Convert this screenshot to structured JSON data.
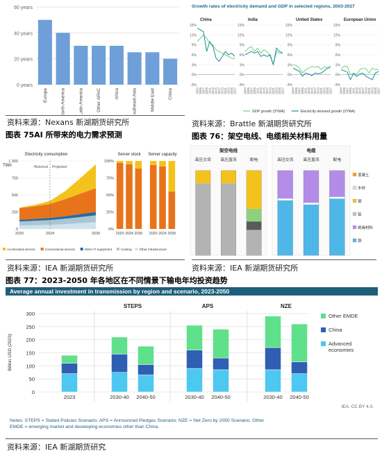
{
  "sources": {
    "tl": "资料来源：Nexans 新湖期货研究所",
    "tr": "资料来源：Brattle 新湖期货研究所",
    "ml": "资料来源：IEA 新湖期货研究所",
    "mr": "资料来源：IEA 新湖期货研究所",
    "bottom": "资料来源：IEA 新湖期货研究"
  },
  "captions": {
    "fig75": "图表 75AI 所带来的电力需求预测",
    "fig76": "图表 76：架空电线、电缆相关材料用量",
    "fig77": "图表 77：2023-2050 年各地区在不同情景下输电年均投资趋势"
  },
  "chart_data": [
    {
      "id": "cable-life",
      "type": "bar",
      "categories": [
        "Europe",
        "North America",
        "Latin America",
        "Other APAC",
        "Africa",
        "Southeast Asia",
        "Middle East",
        "China"
      ],
      "values": [
        50,
        40,
        30,
        30,
        30,
        25,
        25,
        20
      ],
      "ylim": [
        0,
        60
      ],
      "yticks": [
        "0 years",
        "20 years",
        "40 years",
        "60 years"
      ],
      "color": "#6e9fd8"
    },
    {
      "id": "growth-rates",
      "type": "line",
      "title": "Growth rates of electricity demand and GDP in selected regions, 2003-2027",
      "panels": [
        "China",
        "India",
        "United States",
        "European Union"
      ],
      "yticks": [
        "15%",
        "12%",
        "9%",
        "6%",
        "3%",
        "0%",
        "-3%"
      ],
      "ylim": [
        -3,
        15
      ],
      "x": [
        2003,
        2005,
        2007,
        2009,
        2011,
        2013,
        2015,
        2017,
        2019,
        2021,
        2023,
        2025,
        2027
      ],
      "xticks": [
        "2003",
        "2005",
        "2007",
        "2009",
        "2011",
        "2013",
        "2015",
        "2017",
        "2019",
        "2021",
        "2023",
        "2025",
        "2027"
      ],
      "series": [
        {
          "name": "GDP growth (3YMA)",
          "color": "#6fd07a",
          "values": [
            [
              10,
              11,
              12,
              11,
              9.5,
              9,
              7.5,
              7,
              6.5,
              6,
              5.5,
              5,
              4.8
            ],
            [
              7,
              8,
              8.5,
              7,
              8,
              6.5,
              7.5,
              7,
              5.5,
              3,
              7,
              6.5,
              6.5
            ],
            [
              3,
              2.8,
              2,
              0.5,
              1.5,
              2,
              2.5,
              2.3,
              2.5,
              1.5,
              2.5,
              2,
              2
            ],
            [
              2,
              2.5,
              2.5,
              0,
              0.5,
              0.2,
              1.5,
              2,
              1.8,
              0.5,
              2,
              1.5,
              1.5
            ]
          ]
        },
        {
          "name": "Electricity demand growth (3YMA)",
          "color": "#1a8a9a",
          "values": [
            [
              14,
              13.5,
              13,
              7,
              10,
              8.5,
              5,
              4,
              5.5,
              7,
              6,
              6.5,
              5.5
            ],
            [
              6,
              6.5,
              7,
              6.5,
              7,
              5.5,
              6,
              5.5,
              6,
              3,
              8,
              7,
              6.5
            ],
            [
              2,
              1.5,
              1,
              -0.5,
              0.5,
              0.2,
              -0.3,
              0.5,
              0.3,
              0.5,
              1.2,
              2,
              2.5
            ],
            [
              1.5,
              1.2,
              0.8,
              -1.5,
              0.3,
              -0.5,
              0.2,
              0.5,
              -0.5,
              -1,
              -1.5,
              0.5,
              1
            ]
          ]
        }
      ]
    },
    {
      "id": "electricity-consumption",
      "type": "area",
      "title": "Electricity consumption",
      "ylabel": "TWh",
      "yticks": [
        "0",
        "250",
        "500",
        "750",
        "1 000"
      ],
      "ylim": [
        0,
        1000
      ],
      "x": [
        2020,
        2022,
        2024,
        2026,
        2028,
        2030
      ],
      "xticks": [
        "2020",
        "2024",
        "2030"
      ],
      "annotations": [
        "Historical",
        "Projected"
      ],
      "series": [
        {
          "name": "Other infrastructure",
          "color": "#cfe3ea",
          "values": [
            50,
            55,
            60,
            70,
            85,
            100
          ]
        },
        {
          "name": "Cooling",
          "color": "#a9c6d4",
          "values": [
            60,
            65,
            70,
            80,
            90,
            100
          ]
        },
        {
          "name": "Other IT equipment",
          "color": "#2d6a9f",
          "values": [
            25,
            28,
            32,
            38,
            45,
            50
          ]
        },
        {
          "name": "Conventional servers",
          "color": "#e8731a",
          "values": [
            170,
            185,
            205,
            250,
            300,
            350
          ]
        },
        {
          "name": "Accelerated servers",
          "color": "#f4c21d",
          "values": [
            10,
            20,
            45,
            120,
            230,
            350
          ]
        }
      ]
    },
    {
      "id": "server-stock",
      "type": "bar",
      "title": "Server stock",
      "categories": [
        "2020",
        "2024",
        "2030"
      ],
      "yticks": [
        "0%",
        "25%",
        "50%",
        "75%",
        "100%"
      ],
      "series": [
        {
          "name": "Conventional servers",
          "color": "#e8731a",
          "values": [
            97,
            95,
            89
          ]
        },
        {
          "name": "Accelerated servers",
          "color": "#f4c21d",
          "values": [
            3,
            5,
            11
          ]
        }
      ]
    },
    {
      "id": "server-capacity",
      "type": "bar",
      "title": "Server capacity",
      "categories": [
        "2020",
        "2024",
        "2030"
      ],
      "series": [
        {
          "name": "Conventional servers",
          "color": "#e8731a",
          "values": [
            94,
            92,
            55
          ]
        },
        {
          "name": "Accelerated servers",
          "color": "#f4c21d",
          "values": [
            6,
            8,
            45
          ]
        }
      ]
    },
    {
      "id": "overhead-lines",
      "type": "bar",
      "title": "架空电线",
      "categories": [
        "高压交流",
        "高压直流",
        "配电"
      ],
      "series": [
        {
          "name": "铝",
          "color": "#b3b3b3",
          "values": [
            85,
            85,
            30
          ]
        },
        {
          "name": "绝缘材料",
          "color": "#5a5a5a",
          "values": [
            0,
            0,
            10
          ]
        },
        {
          "name": "铜",
          "color": "#8fd07c",
          "values": [
            0,
            0,
            15
          ]
        },
        {
          "name": "钢",
          "color": "#f4c21d",
          "values": [
            15,
            15,
            45
          ]
        }
      ]
    },
    {
      "id": "cables",
      "type": "bar",
      "title": "电缆",
      "categories": [
        "高压交流",
        "高压直流",
        "配电"
      ],
      "series": [
        {
          "name": "铜",
          "color": "#4fb7e8",
          "values": [
            65,
            60,
            67
          ]
        },
        {
          "name": "铅",
          "color": "#ffffff",
          "values": [
            2,
            2,
            2
          ]
        },
        {
          "name": "绝缘材料",
          "color": "#b38ce8",
          "values": [
            33,
            38,
            31
          ]
        }
      ],
      "legend": [
        "混凝土",
        "木材",
        "钢",
        "铝",
        "绝缘材料",
        "铜"
      ],
      "legend_colors": [
        "#f4a11d",
        "#d9d9d9",
        "#f4c21d",
        "#bfbfbf",
        "#b38ce8",
        "#4fb7e8"
      ]
    },
    {
      "id": "transmission-investment",
      "type": "bar",
      "title": "Average annual investment in transmission by region and scenario, 2023-2050",
      "ylabel": "Billion USD (2023)",
      "ylim": [
        0,
        300
      ],
      "yticks": [
        "0",
        "50",
        "100",
        "150",
        "200",
        "250",
        "300"
      ],
      "groups": [
        "STEPS",
        "APS",
        "NZE"
      ],
      "categories": [
        "2023",
        "2030-40",
        "2040-50",
        "2030-40",
        "2040-50",
        "2030-40",
        "2040-50"
      ],
      "series": [
        {
          "name": "Advanced economies",
          "color": "#4dc8f0",
          "values": [
            70,
            75,
            65,
            90,
            85,
            85,
            70
          ]
        },
        {
          "name": "China",
          "color": "#2f5fb3",
          "values": [
            40,
            70,
            40,
            70,
            45,
            85,
            45
          ]
        },
        {
          "name": "Other EMDE",
          "color": "#5fe08a",
          "values": [
            30,
            65,
            70,
            95,
            110,
            120,
            145
          ]
        }
      ],
      "legend": [
        "Other EMDE",
        "China",
        "Advanced economies"
      ],
      "credit": "IEA. CC BY 4.0.",
      "notes": "Notes: STEPS = Stated Policies Scenario; APS = Announced Pledges Scenario; NZE = Net Zero by 2050 Scenario. Other EMDE = emerging market and developing economies other than China."
    }
  ]
}
